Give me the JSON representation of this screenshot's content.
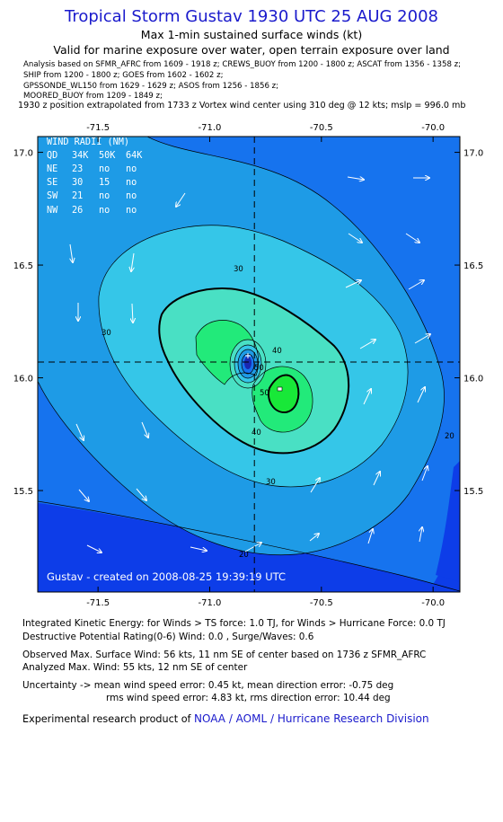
{
  "header": {
    "title": "Tropical Storm Gustav 1930 UTC 25 AUG 2008",
    "subtitle": "Max 1-min sustained surface winds (kt)",
    "validity": "Valid for marine exposure over water, open terrain exposure over land",
    "sources": [
      "Analysis based on   SFMR_AFRC from 1609 - 1918 z;  CREWS_BUOY from 1200 - 1800 z;  ASCAT from 1356 - 1358 z;",
      "SHIP from 1200 - 1800 z;  GOES from 1602 - 1602 z;",
      "GPSSONDE_WL150 from 1629 - 1629 z;  ASOS from 1256 - 1856 z;",
      "MOORED_BUOY from 1209 - 1849 z;"
    ],
    "position_note": "1930 z position extrapolated from 1733 z Vortex wind center using 310 deg @ 12 kts; mslp = 996.0 mb"
  },
  "wind_radii": {
    "title": "WIND RADII (NM)",
    "header": [
      "QD",
      "34K",
      "50K",
      "64K"
    ],
    "rows": [
      [
        "NE",
        "23",
        "no",
        "no"
      ],
      [
        "SE",
        "30",
        "15",
        "no"
      ],
      [
        "SW",
        "21",
        "no",
        "no"
      ],
      [
        "NW",
        "26",
        "no",
        "no"
      ]
    ]
  },
  "credit": "Gustav  -  created on 2008-08-25 19:39:19 UTC",
  "chart_data": {
    "type": "heatmap",
    "x_ticks": [
      "-71.5",
      "-71.0",
      "-70.5",
      "-70.0"
    ],
    "y_ticks": [
      "17.0",
      "16.5",
      "16.0",
      "15.5"
    ],
    "xlim": [
      -71.77,
      -69.88
    ],
    "ylim": [
      15.05,
      17.07
    ],
    "center": {
      "lon": -70.8,
      "lat": 16.07
    },
    "contour_labels": [
      "30",
      "30",
      "30",
      "40",
      "40",
      "50",
      "50",
      "20",
      "20"
    ],
    "colors": {
      "c10": "#0d3de8",
      "c20": "#1673ee",
      "c30": "#1e9be6",
      "c40": "#35c6e8",
      "c50": "#49e0c4",
      "c60": "#22ea7a",
      "c70": "#18e838",
      "core": "#1a28b0",
      "title": "#1a1acc"
    }
  },
  "footer": {
    "ike": "Integrated Kinetic Energy:  for Winds > TS force: 1.0 TJ,  for Winds > Hurricane Force: 0.0 TJ",
    "dpr": "Destructive Potential Rating(0-6)   Wind: 0.0 , Surge/Waves: 0.6",
    "observed": "Observed Max. Surface Wind: 56 kts, 11 nm SE of center based on 1736 z SFMR_AFRC",
    "analyzed": "Analyzed Max. Wind: 55 kts, 12 nm SE of center",
    "uncertainty1": "Uncertainty -> mean wind speed error: 0.45 kt,   mean direction error:  -0.75 deg",
    "uncertainty2": "rms wind speed error: 4.83 kt,   rms direction error: 10.44 deg",
    "experimental": "Experimental research product of ",
    "division": "NOAA / AOML / Hurricane Research Division"
  }
}
